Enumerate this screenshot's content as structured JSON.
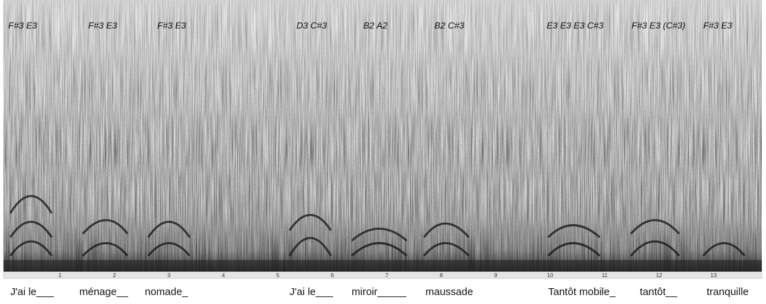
{
  "notes": [
    "F#3 E3",
    "F#3 E3",
    "F#3 E3",
    "D3  C#3",
    "B2  A2",
    "B2  C#3",
    "E3  E3  E3  C#3",
    "F#3 E3 (C#3)",
    "F#3  E3"
  ],
  "timeline": {
    "ticks": [
      1,
      2,
      3,
      4,
      5,
      6,
      7,
      8,
      9,
      10,
      11,
      12,
      13
    ]
  },
  "lyrics": [
    "J'ai le___",
    "ménage__",
    "nomade_",
    "J'ai le___",
    "miroir_____",
    "maussade",
    "Tantôt mobile_",
    "tantôt__",
    "tranquille"
  ]
}
